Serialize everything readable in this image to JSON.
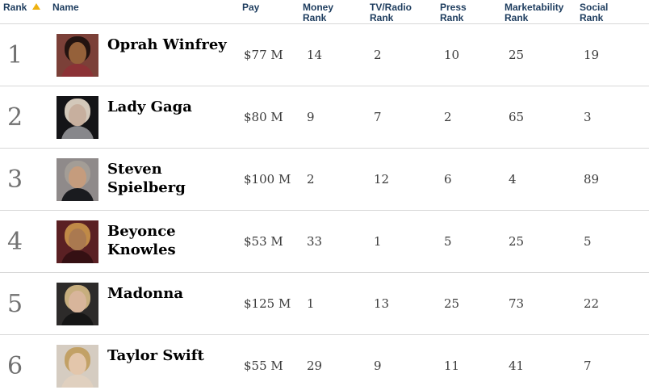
{
  "table": {
    "columns": [
      {
        "label": "Rank",
        "sort": "ascending"
      },
      {
        "label": "Name"
      },
      {
        "label": "Pay"
      },
      {
        "label": "Money\nRank"
      },
      {
        "label": "TV/Radio\nRank"
      },
      {
        "label": "Press\nRank"
      },
      {
        "label": "Marketability\nRank"
      },
      {
        "label": "Social\nRank"
      }
    ],
    "rows": [
      {
        "rank": "1",
        "name": "Oprah Winfrey",
        "pay": "$77 M",
        "money_rank": "14",
        "tv_radio_rank": "2",
        "press_rank": "10",
        "marketability_rank": "25",
        "social_rank": "19",
        "photo": {
          "bg": "#7b4038",
          "hair": "#231310",
          "skin": "#95613a",
          "body": "#8c3236"
        }
      },
      {
        "rank": "2",
        "name": "Lady Gaga",
        "pay": "$80 M",
        "money_rank": "9",
        "tv_radio_rank": "7",
        "press_rank": "2",
        "marketability_rank": "65",
        "social_rank": "3",
        "photo": {
          "bg": "#141417",
          "hair": "#d3c8ba",
          "skin": "#c7af9e",
          "body": "#87878b"
        }
      },
      {
        "rank": "3",
        "name": "Steven Spielberg",
        "pay": "$100 M",
        "money_rank": "2",
        "tv_radio_rank": "12",
        "press_rank": "6",
        "marketability_rank": "4",
        "social_rank": "89",
        "photo": {
          "bg": "#8f8a8a",
          "hair": "#a39d96",
          "skin": "#c59c7d",
          "body": "#1a1b1f"
        }
      },
      {
        "rank": "4",
        "name": "Beyonce\nKnowles",
        "pay": "$53 M",
        "money_rank": "33",
        "tv_radio_rank": "1",
        "press_rank": "5",
        "marketability_rank": "25",
        "social_rank": "5",
        "photo": {
          "bg": "#5a2023",
          "hair": "#c08a47",
          "skin": "#aa7950",
          "body": "#351013"
        }
      },
      {
        "rank": "5",
        "name": "Madonna",
        "pay": "$125 M",
        "money_rank": "1",
        "tv_radio_rank": "13",
        "press_rank": "25",
        "marketability_rank": "73",
        "social_rank": "22",
        "photo": {
          "bg": "#2d2b2a",
          "hair": "#c7ae7e",
          "skin": "#d8b59b",
          "body": "#161616"
        }
      },
      {
        "rank": "6",
        "name": "Taylor Swift",
        "pay": "$55 M",
        "money_rank": "29",
        "tv_radio_rank": "9",
        "press_rank": "11",
        "marketability_rank": "41",
        "social_rank": "7",
        "photo": {
          "bg": "#d5ccc1",
          "hair": "#c2a166",
          "skin": "#e3c6ab",
          "body": "#e0d0bf"
        }
      }
    ]
  },
  "colors": {
    "header_text": "#1d3c5e",
    "sort_arrow": "#eeb211",
    "rank_number": "#717171",
    "name_text": "#000000",
    "value_text": "#3b3b3b",
    "divider": "#d8d8d8",
    "background": "#ffffff"
  }
}
